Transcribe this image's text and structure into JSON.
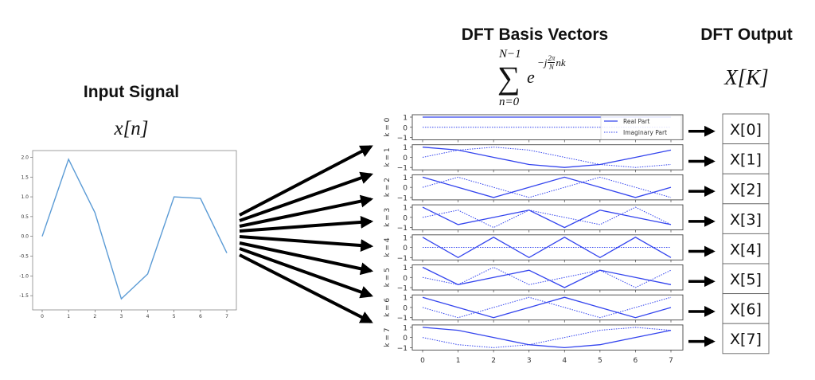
{
  "input": {
    "title": "Input Signal",
    "symbol": "x[n]"
  },
  "basis": {
    "title": "DFT Basis Vectors",
    "formula": {
      "sum_top": "N−1",
      "sum_symbol": "∑",
      "sum_bottom": "n=0",
      "base": "e",
      "exponent_prefix": "−j",
      "frac_num": "2π",
      "frac_den": "N",
      "exponent_suffix": "nk"
    }
  },
  "output": {
    "title": "DFT Output",
    "symbol": "X[K]",
    "boxes": [
      "X[0]",
      "X[1]",
      "X[2]",
      "X[3]",
      "X[4]",
      "X[5]",
      "X[6]",
      "X[7]"
    ]
  },
  "colors": {
    "input_line": "#5b9bd5",
    "basis_line": "#3344ee",
    "arrow": "#000000",
    "frame": "#444444"
  },
  "chart_data": [
    {
      "type": "line",
      "x": [
        0,
        1,
        2,
        3,
        4,
        5,
        6,
        7
      ],
      "values": [
        0,
        1.95,
        0.6,
        -1.58,
        -0.95,
        1.0,
        0.96,
        -0.42
      ],
      "xticks": [
        "0",
        "1",
        "2",
        "3",
        "4",
        "5",
        "6",
        "7"
      ],
      "yticks": [
        "-1.5",
        "-1.0",
        "-0.5",
        "0.0",
        "0.5",
        "1.0",
        "1.5",
        "2.0"
      ],
      "xlim": [
        -0.35,
        7.35
      ],
      "ylim": [
        -1.86,
        2.17
      ],
      "grid": false
    },
    {
      "type": "line",
      "x": [
        0,
        1,
        2,
        3,
        4,
        5,
        6,
        7
      ],
      "xticks": [
        "0",
        "1",
        "2",
        "3",
        "4",
        "5",
        "6",
        "7"
      ],
      "yticks": [
        "−1",
        "0",
        "1"
      ],
      "ylim": [
        -1,
        1
      ],
      "legend": {
        "entries": [
          "Real Part",
          "Imaginary Part"
        ],
        "placement": "top-right of first subplot"
      },
      "subplots": [
        {
          "label": "k = 0",
          "real": [
            1,
            1,
            1,
            1,
            1,
            1,
            1,
            1
          ],
          "imag": [
            0,
            0,
            0,
            0,
            0,
            0,
            0,
            0
          ]
        },
        {
          "label": "k = 1",
          "real": [
            1,
            0.71,
            0,
            -0.71,
            -1,
            -0.71,
            0,
            0.71
          ],
          "imag": [
            0,
            0.71,
            1,
            0.71,
            0,
            -0.71,
            -1,
            -0.71
          ]
        },
        {
          "label": "k = 2",
          "real": [
            1,
            0,
            -1,
            0,
            1,
            0,
            -1,
            0
          ],
          "imag": [
            0,
            1,
            0,
            -1,
            0,
            1,
            0,
            -1
          ]
        },
        {
          "label": "k = 3",
          "real": [
            1,
            -0.71,
            0,
            0.71,
            -1,
            0.71,
            0,
            -0.71
          ],
          "imag": [
            0,
            0.71,
            -1,
            0.71,
            0,
            -0.71,
            1,
            -0.71
          ]
        },
        {
          "label": "k = 4",
          "real": [
            1,
            -1,
            1,
            -1,
            1,
            -1,
            1,
            -1
          ],
          "imag": [
            0,
            0,
            0,
            0,
            0,
            0,
            0,
            0
          ]
        },
        {
          "label": "k = 5",
          "real": [
            1,
            -0.71,
            0,
            0.71,
            -1,
            0.71,
            0,
            -0.71
          ],
          "imag": [
            0,
            -0.71,
            1,
            -0.71,
            0,
            0.71,
            -1,
            0.71
          ]
        },
        {
          "label": "k = 6",
          "real": [
            1,
            0,
            -1,
            0,
            1,
            0,
            -1,
            0
          ],
          "imag": [
            0,
            -1,
            0,
            1,
            0,
            -1,
            0,
            1
          ]
        },
        {
          "label": "k = 7",
          "real": [
            1,
            0.71,
            0,
            -0.71,
            -1,
            -0.71,
            0,
            0.71
          ],
          "imag": [
            0,
            -0.71,
            -1,
            -0.71,
            0,
            0.71,
            1,
            0.71
          ]
        }
      ]
    }
  ]
}
